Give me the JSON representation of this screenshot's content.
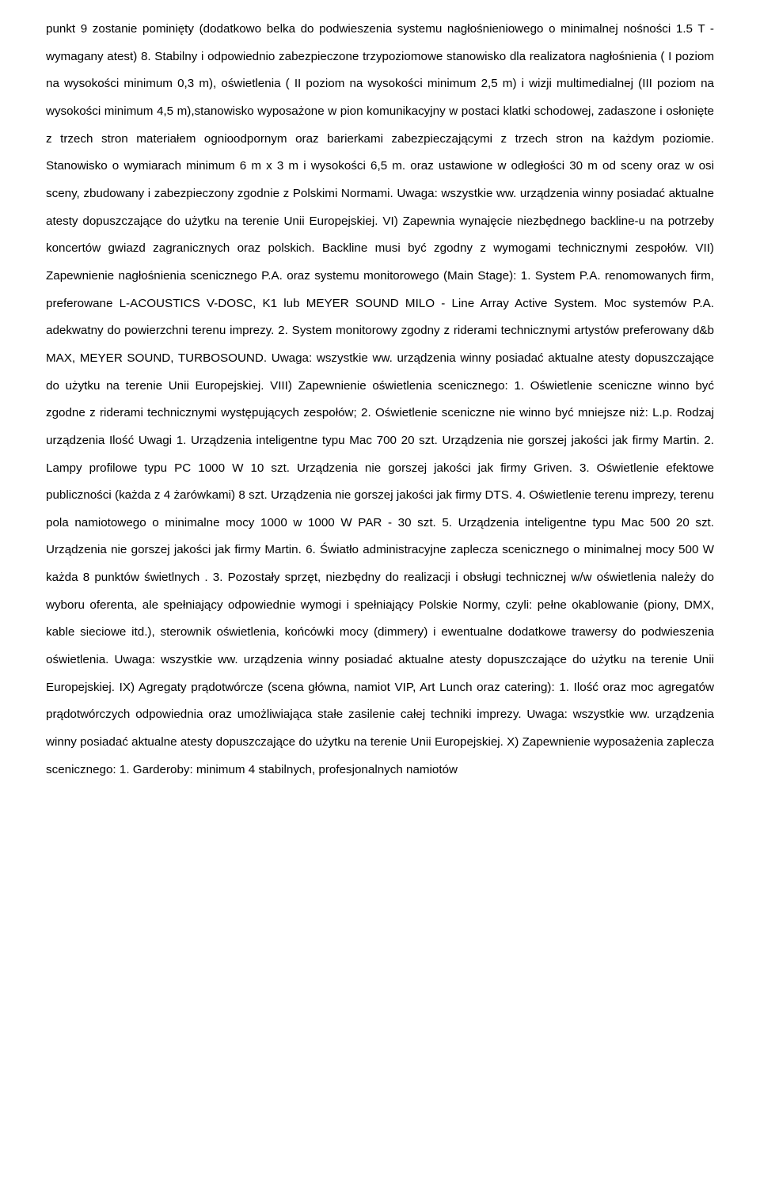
{
  "document": {
    "body_text": "punkt 9 zostanie pominięty (dodatkowo belka do podwieszenia systemu nagłośnieniowego o minimalnej nośności 1.5 T - wymagany atest) 8. Stabilny i odpowiednio zabezpieczone trzypoziomowe stanowisko dla realizatora nagłośnienia ( I poziom na wysokości minimum 0,3 m), oświetlenia ( II poziom na wysokości minimum 2,5 m) i wizji multimedialnej (III poziom na wysokości minimum 4,5 m),stanowisko wyposażone w pion komunikacyjny w postaci klatki schodowej, zadaszone i osłonięte z trzech stron materiałem ognioodpornym oraz barierkami zabezpieczającymi z trzech stron na każdym poziomie. Stanowisko o wymiarach minimum 6 m x 3 m i wysokości 6,5 m. oraz ustawione w odległości 30 m od sceny oraz w osi sceny, zbudowany i zabezpieczony zgodnie z Polskimi Normami. Uwaga: wszystkie ww. urządzenia winny posiadać aktualne atesty dopuszczające do użytku na terenie Unii Europejskiej. VI) Zapewnia wynajęcie niezbędnego backline-u na potrzeby koncertów gwiazd zagranicznych oraz polskich. Backline musi być zgodny z wymogami technicznymi zespołów. VII) Zapewnienie nagłośnienia scenicznego P.A. oraz systemu monitorowego (Main Stage): 1. System P.A. renomowanych firm, preferowane L-ACOUSTICS V-DOSC, K1 lub MEYER SOUND MILO - Line Array Active System. Moc systemów P.A. adekwatny do powierzchni terenu imprezy. 2. System monitorowy zgodny z riderami technicznymi artystów preferowany d&b MAX, MEYER SOUND, TURBOSOUND. Uwaga: wszystkie ww. urządzenia winny posiadać aktualne atesty dopuszczające do użytku na terenie Unii Europejskiej. VIII) Zapewnienie oświetlenia scenicznego: 1. Oświetlenie sceniczne winno być zgodne z riderami technicznymi występujących zespołów; 2. Oświetlenie sceniczne nie winno być mniejsze niż: L.p. Rodzaj urządzenia Ilość Uwagi 1. Urządzenia inteligentne typu Mac 700 20 szt. Urządzenia nie gorszej jakości jak firmy Martin. 2. Lampy profilowe typu PC 1000 W 10 szt. Urządzenia nie gorszej jakości jak firmy Griven. 3. Oświetlenie efektowe publiczności (każda z 4 żarówkami) 8 szt. Urządzenia nie gorszej jakości jak firmy DTS. 4. Oświetlenie terenu imprezy, terenu pola namiotowego o minimalne mocy 1000 w 1000 W PAR - 30 szt. 5. Urządzenia inteligentne typu Mac 500 20 szt. Urządzenia nie gorszej jakości jak firmy Martin. 6. Światło administracyjne zaplecza scenicznego o minimalnej mocy 500 W każda 8 punktów świetlnych . 3. Pozostały sprzęt, niezbędny do realizacji i obsługi technicznej w/w oświetlenia należy do wyboru oferenta, ale spełniający odpowiednie wymogi i spełniający Polskie Normy, czyli: pełne okablowanie (piony, DMX, kable sieciowe itd.), sterownik oświetlenia, końcówki mocy (dimmery) i ewentualne dodatkowe trawersy do podwieszenia oświetlenia. Uwaga: wszystkie ww. urządzenia winny posiadać aktualne atesty dopuszczające do użytku na terenie Unii Europejskiej. IX) Agregaty prądotwórcze (scena główna, namiot VIP, Art Lunch oraz catering): 1. Ilość oraz moc agregatów prądotwórczych odpowiednia oraz umożliwiająca stałe zasilenie całej techniki imprezy. Uwaga: wszystkie ww. urządzenia winny posiadać aktualne atesty dopuszczające do użytku na terenie Unii Europejskiej. X) Zapewnienie wyposażenia zaplecza scenicznego: 1. Garderoby: minimum 4 stabilnych, profesjonalnych namiotów"
  }
}
